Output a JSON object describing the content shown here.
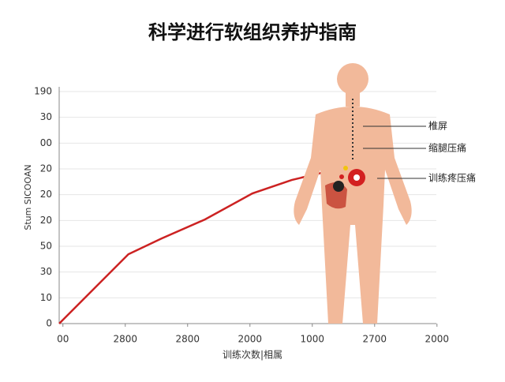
{
  "chart_data": {
    "type": "line",
    "title": "科学进行软组织养护指南",
    "ylabel": "Stum SICOOAN",
    "xlabel": "训练次数|相属",
    "x": [
      -0.06,
      1.05,
      1.58,
      2.28,
      3.04,
      3.67,
      4.24
    ],
    "series": [
      {
        "color": "#cc2222",
        "values": [
          0,
          2.69,
          3.3,
          4.04,
          5.05,
          5.57,
          5.9
        ]
      }
    ],
    "xlim": [
      -0.06,
      5.99
    ],
    "ylim": [
      0,
      9
    ],
    "xticks": [
      {
        "value": 0,
        "label": "00"
      },
      {
        "value": 1,
        "label": "2800"
      },
      {
        "value": 2,
        "label": "2800"
      },
      {
        "value": 3,
        "label": "2000"
      },
      {
        "value": 4,
        "label": "1000"
      },
      {
        "value": 5,
        "label": "2700"
      },
      {
        "value": 6,
        "label": "2000"
      }
    ],
    "yticks": [
      {
        "value": 0,
        "label": "0"
      },
      {
        "value": 1,
        "label": "10"
      },
      {
        "value": 2,
        "label": "30"
      },
      {
        "value": 3,
        "label": "50"
      },
      {
        "value": 4,
        "label": "20"
      },
      {
        "value": 5,
        "label": "20"
      },
      {
        "value": 6,
        "label": "20"
      },
      {
        "value": 7,
        "label": "00"
      },
      {
        "value": 8,
        "label": "30"
      },
      {
        "value": 9,
        "label": "190"
      }
    ],
    "grid": true,
    "annotations": [
      "椎屏",
      "缩腿压痛",
      "训练疼压痛"
    ]
  }
}
